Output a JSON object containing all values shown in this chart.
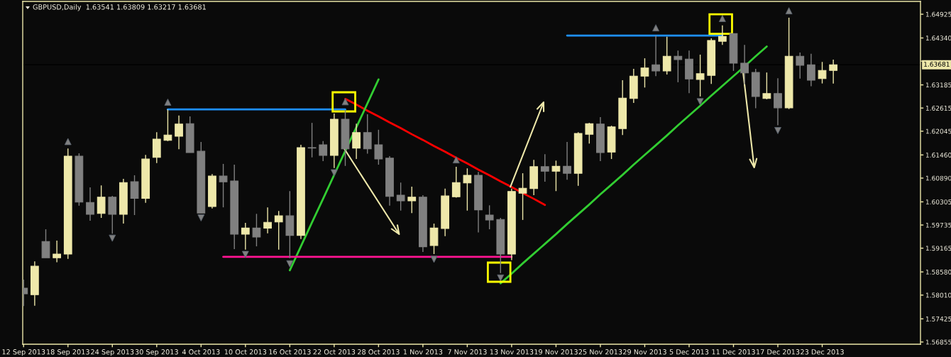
{
  "chart_data": {
    "type": "candlestick",
    "title": "GBPUSD,Daily  1.63541 1.63809 1.63217 1.63681",
    "categories": [
      "12 Sep 2013",
      null,
      null,
      null,
      "18 Sep 2013",
      null,
      null,
      null,
      "24 Sep 2013",
      null,
      null,
      null,
      "30 Sep 2013",
      null,
      null,
      null,
      "4 Oct 2013",
      null,
      null,
      null,
      "10 Oct 2013",
      null,
      null,
      null,
      "16 Oct 2013",
      null,
      null,
      null,
      "22 Oct 2013",
      null,
      null,
      null,
      "28 Oct 2013",
      null,
      null,
      null,
      "1 Nov 2013",
      null,
      null,
      null,
      "7 Nov 2013",
      null,
      null,
      null,
      "13 Nov 2013",
      null,
      null,
      null,
      "19 Nov 2013",
      null,
      null,
      null,
      "25 Nov 2013",
      null,
      null,
      null,
      "29 Nov 2013",
      null,
      null,
      null,
      "5 Dec 2013",
      null,
      null,
      null,
      "11 Dec 2013",
      null,
      null,
      null,
      "17 Dec 2013",
      null,
      null,
      null,
      "23 Dec 2013",
      null,
      null,
      null,
      null,
      null,
      null,
      null,
      null
    ],
    "ohlc": [
      [
        1.5818,
        1.5839,
        1.5774,
        1.5804
      ],
      [
        1.5802,
        1.5884,
        1.5775,
        1.5872
      ],
      [
        1.5933,
        1.5963,
        1.5893,
        1.5893
      ],
      [
        1.5893,
        1.5935,
        1.5882,
        1.5902
      ],
      [
        1.5902,
        1.6162,
        1.589,
        1.6143
      ],
      [
        1.6143,
        1.615,
        1.6021,
        1.603
      ],
      [
        1.6029,
        1.6066,
        1.5984,
        1.6
      ],
      [
        1.6002,
        1.6071,
        1.5991,
        1.6042
      ],
      [
        1.6042,
        1.6045,
        1.5952,
        1.6
      ],
      [
        1.6,
        1.6087,
        1.5977,
        1.6078
      ],
      [
        1.608,
        1.6096,
        1.5998,
        1.6039
      ],
      [
        1.6039,
        1.6146,
        1.6028,
        1.6136
      ],
      [
        1.614,
        1.6202,
        1.6126,
        1.6185
      ],
      [
        1.6182,
        1.6258,
        1.618,
        1.6195
      ],
      [
        1.6192,
        1.6243,
        1.616,
        1.6222
      ],
      [
        1.6223,
        1.6241,
        1.6152,
        1.6152
      ],
      [
        1.6155,
        1.6178,
        1.6003,
        1.6003
      ],
      [
        1.6019,
        1.6099,
        1.6014,
        1.6094
      ],
      [
        1.6094,
        1.6124,
        1.6017,
        1.608
      ],
      [
        1.6082,
        1.6122,
        1.5914,
        1.5951
      ],
      [
        1.5951,
        1.5979,
        1.5913,
        1.5966
      ],
      [
        1.5966,
        1.6001,
        1.5921,
        1.5944
      ],
      [
        1.5966,
        1.6017,
        1.5953,
        1.598
      ],
      [
        1.5981,
        1.6008,
        1.5913,
        1.5996
      ],
      [
        1.5996,
        1.6057,
        1.5892,
        1.5948
      ],
      [
        1.5948,
        1.6171,
        1.5939,
        1.6164
      ],
      [
        1.6164,
        1.6225,
        1.614,
        1.6163
      ],
      [
        1.6171,
        1.618,
        1.6131,
        1.6145
      ],
      [
        1.6145,
        1.6248,
        1.6114,
        1.6234
      ],
      [
        1.6234,
        1.6255,
        1.6119,
        1.6161
      ],
      [
        1.6163,
        1.6223,
        1.6136,
        1.6201
      ],
      [
        1.6201,
        1.6246,
        1.6149,
        1.6161
      ],
      [
        1.6171,
        1.6208,
        1.6122,
        1.6136
      ],
      [
        1.6138,
        1.6143,
        1.6021,
        1.6044
      ],
      [
        1.6047,
        1.6078,
        1.6009,
        1.6033
      ],
      [
        1.6033,
        1.6068,
        1.6003,
        1.6042
      ],
      [
        1.6042,
        1.6047,
        1.5907,
        1.592
      ],
      [
        1.5923,
        1.5977,
        1.5902,
        1.5966
      ],
      [
        1.5965,
        1.6063,
        1.5946,
        1.6045
      ],
      [
        1.6043,
        1.6117,
        1.6041,
        1.6078
      ],
      [
        1.6077,
        1.6113,
        1.6009,
        1.6096
      ],
      [
        1.6096,
        1.6104,
        1.5955,
        1.6011
      ],
      [
        1.5998,
        1.6022,
        1.5963,
        1.5986
      ],
      [
        1.5987,
        1.5991,
        1.5855,
        1.5902
      ],
      [
        1.5902,
        1.6063,
        1.5887,
        1.6056
      ],
      [
        1.6052,
        1.6101,
        1.5986,
        1.6064
      ],
      [
        1.6063,
        1.6134,
        1.6047,
        1.6117
      ],
      [
        1.6117,
        1.6148,
        1.608,
        1.6106
      ],
      [
        1.6106,
        1.6132,
        1.6057,
        1.6118
      ],
      [
        1.6118,
        1.6178,
        1.6085,
        1.6101
      ],
      [
        1.6101,
        1.6202,
        1.607,
        1.6199
      ],
      [
        1.6197,
        1.6225,
        1.6174,
        1.6223
      ],
      [
        1.6222,
        1.6239,
        1.6131,
        1.6152
      ],
      [
        1.6153,
        1.6218,
        1.6136,
        1.6215
      ],
      [
        1.6211,
        1.633,
        1.6195,
        1.6286
      ],
      [
        1.6285,
        1.6358,
        1.6274,
        1.634
      ],
      [
        1.634,
        1.6384,
        1.6312,
        1.636
      ],
      [
        1.6368,
        1.644,
        1.634,
        1.6353
      ],
      [
        1.6353,
        1.6437,
        1.6344,
        1.6389
      ],
      [
        1.6389,
        1.6403,
        1.6325,
        1.6381
      ],
      [
        1.6382,
        1.6403,
        1.6298,
        1.6333
      ],
      [
        1.6332,
        1.6393,
        1.629,
        1.6346
      ],
      [
        1.6342,
        1.6433,
        1.6321,
        1.6428
      ],
      [
        1.6426,
        1.6465,
        1.6417,
        1.6438
      ],
      [
        1.6445,
        1.6445,
        1.6353,
        1.6372
      ],
      [
        1.6372,
        1.6417,
        1.632,
        1.6348
      ],
      [
        1.6349,
        1.6358,
        1.6261,
        1.629
      ],
      [
        1.6285,
        1.6349,
        1.6283,
        1.6297
      ],
      [
        1.6297,
        1.6335,
        1.6219,
        1.6262
      ],
      [
        1.6262,
        1.6484,
        1.6259,
        1.6389
      ],
      [
        1.6389,
        1.6398,
        1.6334,
        1.6367
      ],
      [
        1.6368,
        1.6395,
        1.6315,
        1.633
      ],
      [
        1.6334,
        1.6375,
        1.6322,
        1.6354
      ],
      [
        1.63541,
        1.63809,
        1.63217,
        1.63681
      ],
      null,
      null,
      null,
      null,
      null,
      null,
      null
    ],
    "colors": [
      "#808080",
      "#eee8aa",
      "#808080",
      "#eee8aa",
      "#eee8aa",
      "#808080",
      "#808080",
      "#eee8aa",
      "#808080",
      "#eee8aa",
      "#808080",
      "#eee8aa",
      "#eee8aa",
      "#eee8aa",
      "#eee8aa",
      "#808080",
      "#808080",
      "#eee8aa",
      "#808080",
      "#808080",
      "#eee8aa",
      "#808080",
      "#eee8aa",
      "#eee8aa",
      "#808080",
      "#eee8aa",
      "#808080",
      "#808080",
      "#eee8aa",
      "#808080",
      "#eee8aa",
      "#808080",
      "#808080",
      "#808080",
      "#808080",
      "#eee8aa",
      "#808080",
      "#eee8aa",
      "#eee8aa",
      "#eee8aa",
      "#eee8aa",
      "#808080",
      "#808080",
      "#808080",
      "#eee8aa",
      "#eee8aa",
      "#eee8aa",
      "#808080",
      "#eee8aa",
      "#808080",
      "#eee8aa",
      "#eee8aa",
      "#808080",
      "#eee8aa",
      "#eee8aa",
      "#eee8aa",
      "#eee8aa",
      "#808080",
      "#eee8aa",
      "#808080",
      "#808080",
      "#eee8aa",
      "#eee8aa",
      "#eee8aa",
      "#808080",
      "#808080",
      "#808080",
      "#eee8aa",
      "#808080",
      "#eee8aa",
      "#808080",
      "#808080",
      "#eee8aa",
      "#eee8aa",
      null,
      null,
      null,
      null,
      null,
      null,
      null
    ],
    "series": [
      {
        "type": "line",
        "color": "#1e90ff",
        "values": [
          null,
          null,
          null,
          null,
          null,
          null,
          null,
          null,
          null,
          null,
          null,
          null,
          null,
          1.6258,
          1.6258,
          1.6258,
          1.6258,
          1.6258,
          1.6258,
          1.6258,
          1.6258,
          1.6258,
          1.6258,
          1.6258,
          1.6258,
          1.6258,
          1.6258,
          1.6258,
          1.6258,
          1.6258,
          null,
          null,
          null,
          null,
          null,
          null,
          null,
          null,
          null,
          null,
          null,
          null,
          null,
          null,
          null,
          null,
          null,
          null,
          null,
          null,
          null,
          null,
          null,
          null,
          null,
          null,
          null,
          null,
          null,
          null,
          null,
          null,
          null,
          null,
          null,
          null,
          null,
          null,
          null,
          null,
          null,
          null,
          null,
          null,
          null,
          null,
          null,
          null,
          null,
          null,
          null
        ]
      },
      {
        "type": "line",
        "color": "#1e90ff",
        "values": [
          null,
          null,
          null,
          null,
          null,
          null,
          null,
          null,
          null,
          null,
          null,
          null,
          null,
          null,
          null,
          null,
          null,
          null,
          null,
          null,
          null,
          null,
          null,
          null,
          null,
          null,
          null,
          null,
          null,
          null,
          null,
          null,
          null,
          null,
          null,
          null,
          null,
          null,
          null,
          null,
          null,
          null,
          null,
          null,
          null,
          null,
          null,
          null,
          null,
          1.644,
          1.644,
          1.644,
          1.644,
          1.644,
          1.644,
          1.644,
          1.644,
          1.644,
          1.644,
          1.644,
          1.644,
          1.644,
          1.644,
          1.644,
          null,
          null,
          null,
          null,
          null,
          null,
          null,
          null,
          null,
          null,
          null,
          null,
          null,
          null,
          null,
          null,
          null
        ]
      },
      {
        "type": "line",
        "color": "#ff0000",
        "values": [
          null,
          null,
          null,
          null,
          null,
          null,
          null,
          null,
          null,
          null,
          null,
          null,
          null,
          null,
          null,
          null,
          null,
          null,
          null,
          null,
          null,
          null,
          null,
          null,
          null,
          null,
          null,
          null,
          null,
          1.6284,
          1.627,
          1.6255,
          1.6241,
          1.6226,
          1.6212,
          1.6197,
          1.6183,
          1.6168,
          1.6154,
          1.6139,
          1.6125,
          1.611,
          1.6096,
          1.6081,
          1.6067,
          1.6052,
          1.6038,
          1.6023,
          null,
          null,
          null,
          null,
          null,
          null,
          null,
          null,
          null,
          null,
          null,
          null,
          null,
          null,
          null,
          null,
          null,
          null,
          null,
          null,
          null,
          null,
          null,
          null,
          null,
          null,
          null,
          null,
          null,
          null,
          null,
          null,
          null
        ]
      },
      {
        "type": "line",
        "color": "#32cd32",
        "values": [
          null,
          null,
          null,
          null,
          null,
          null,
          null,
          null,
          null,
          null,
          null,
          null,
          null,
          null,
          null,
          null,
          null,
          null,
          null,
          null,
          null,
          null,
          null,
          null,
          1.5862,
          1.5921,
          1.598,
          1.6038,
          1.6097,
          1.6156,
          1.6214,
          1.6273,
          1.6332,
          null,
          null,
          null,
          null,
          null,
          null,
          null,
          null,
          null,
          null,
          null,
          null,
          null,
          null,
          null,
          null,
          null,
          null,
          null,
          null,
          null,
          null,
          null,
          null,
          null,
          null,
          null,
          null,
          null,
          null,
          null,
          null,
          null,
          null,
          null,
          null,
          null,
          null,
          null,
          null,
          null,
          null,
          null,
          null,
          null,
          null,
          null,
          null
        ]
      },
      {
        "type": "line",
        "color": "#32cd32",
        "values": [
          null,
          null,
          null,
          null,
          null,
          null,
          null,
          null,
          null,
          null,
          null,
          null,
          null,
          null,
          null,
          null,
          null,
          null,
          null,
          null,
          null,
          null,
          null,
          null,
          null,
          null,
          null,
          null,
          null,
          null,
          null,
          null,
          null,
          null,
          null,
          null,
          null,
          null,
          null,
          null,
          null,
          null,
          null,
          1.583,
          1.5854,
          1.5879,
          1.5903,
          1.5927,
          1.5951,
          1.5976,
          1.6,
          1.6024,
          1.6049,
          1.6073,
          1.6097,
          1.6122,
          1.6146,
          1.617,
          1.6194,
          1.6219,
          1.6243,
          1.6267,
          1.6292,
          1.6316,
          1.634,
          1.6364,
          1.6389,
          1.6413,
          null,
          null,
          null,
          null,
          null,
          null,
          null,
          null,
          null,
          null,
          null,
          null,
          null
        ]
      },
      {
        "type": "line",
        "color": "#ff1493",
        "values": [
          null,
          null,
          null,
          null,
          null,
          null,
          null,
          null,
          null,
          null,
          null,
          null,
          null,
          null,
          null,
          null,
          null,
          null,
          1.5895,
          1.5895,
          1.5895,
          1.5895,
          1.5895,
          1.5895,
          1.5895,
          1.5895,
          1.5895,
          1.5895,
          1.5895,
          1.5895,
          1.5895,
          1.5895,
          1.5895,
          1.5895,
          1.5895,
          1.5895,
          1.5895,
          1.5895,
          1.5895,
          1.5895,
          1.5895,
          1.5895,
          1.5895,
          1.5895,
          1.5895,
          null,
          null,
          null,
          null,
          null,
          null,
          null,
          null,
          null,
          null,
          null,
          null,
          null,
          null,
          null,
          null,
          null,
          null,
          null,
          null,
          null,
          null,
          null,
          null,
          null,
          null,
          null,
          null,
          null,
          null,
          null,
          null,
          null,
          null,
          null,
          null
        ]
      },
      {
        "type": "scatter",
        "color": "#808080",
        "marker": "triangle",
        "values": [
          null,
          null,
          null,
          null,
          1.6179,
          null,
          null,
          null,
          null,
          null,
          null,
          null,
          null,
          1.6276,
          null,
          null,
          null,
          null,
          null,
          null,
          null,
          null,
          null,
          null,
          null,
          null,
          null,
          null,
          null,
          1.6277,
          null,
          null,
          null,
          null,
          null,
          null,
          null,
          null,
          null,
          1.6134,
          null,
          null,
          null,
          null,
          null,
          null,
          null,
          null,
          null,
          null,
          null,
          null,
          null,
          null,
          null,
          null,
          null,
          1.6459,
          null,
          null,
          null,
          null,
          null,
          1.6482,
          null,
          null,
          null,
          null,
          null,
          1.6501,
          null,
          null,
          null,
          null,
          null,
          null,
          null,
          null,
          null,
          null,
          null
        ]
      },
      {
        "type": "scatter",
        "color": "#808080",
        "marker": "triangle_down",
        "values": [
          null,
          null,
          null,
          null,
          null,
          null,
          null,
          null,
          1.5941,
          null,
          null,
          null,
          null,
          null,
          null,
          null,
          1.5991,
          null,
          null,
          null,
          1.5901,
          null,
          null,
          null,
          1.5878,
          null,
          null,
          null,
          1.6102,
          null,
          null,
          null,
          null,
          null,
          null,
          null,
          null,
          1.5889,
          null,
          null,
          null,
          null,
          null,
          1.5843,
          null,
          null,
          null,
          null,
          null,
          null,
          null,
          null,
          null,
          null,
          null,
          null,
          null,
          null,
          null,
          null,
          null,
          1.6277,
          null,
          null,
          null,
          null,
          null,
          null,
          1.6206,
          null,
          null,
          null,
          null,
          null,
          null,
          null,
          null,
          null,
          null,
          null,
          null
        ]
      }
    ],
    "ylim": [
      1.568,
      1.6524
    ],
    "yticks": [
      {
        "value": 1.64925,
        "label": "1.64925"
      },
      {
        "value": 1.6434,
        "label": "1.64340"
      },
      {
        "value": 1.6377,
        "label": null
      },
      {
        "value": 1.63185,
        "label": "1.63185"
      },
      {
        "value": 1.62615,
        "label": "1.62615"
      },
      {
        "value": 1.62045,
        "label": "1.62045"
      },
      {
        "value": 1.6146,
        "label": "1.61460"
      },
      {
        "value": 1.6089,
        "label": "1.60890"
      },
      {
        "value": 1.60305,
        "label": "1.60305"
      },
      {
        "value": 1.59735,
        "label": "1.59735"
      },
      {
        "value": 1.59165,
        "label": "1.59165"
      },
      {
        "value": 1.5858,
        "label": "1.58580"
      },
      {
        "value": 1.5801,
        "label": "1.58010"
      },
      {
        "value": 1.57425,
        "label": "1.57425"
      },
      {
        "value": 1.56855,
        "label": "1.56855"
      }
    ],
    "ref_lines": [
      {
        "axis": "y",
        "value": 1.63681,
        "label": "1.63681",
        "color": "#000000"
      }
    ]
  }
}
